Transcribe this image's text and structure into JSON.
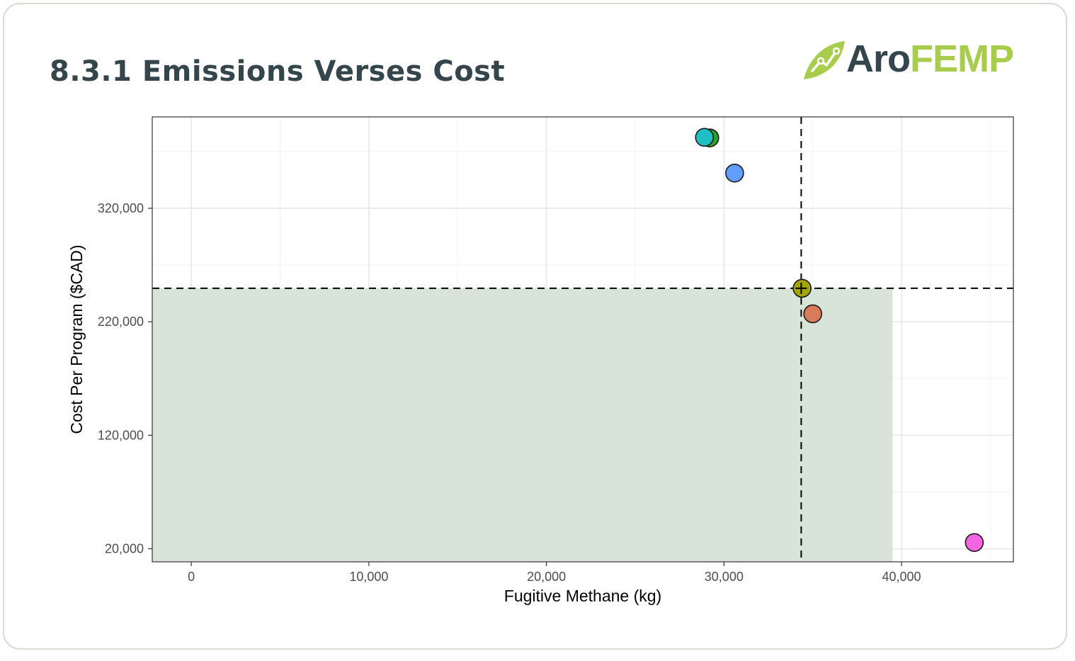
{
  "page": {
    "title": "8.3.1 Emissions Verses Cost"
  },
  "logo": {
    "icon": "leaf-chart-icon",
    "part1": "Aro",
    "part2": "FEMP",
    "colors": {
      "dark": "#34454c",
      "accent": "#a8cc4c"
    }
  },
  "chart_data": {
    "type": "scatter",
    "xlabel": "Fugitive Methane (kg)",
    "ylabel": "Cost Per Program ($CAD)",
    "xlim": [
      -2200,
      46300
    ],
    "ylim": [
      8500,
      400500
    ],
    "x_ticks": [
      0,
      10000,
      20000,
      30000,
      40000
    ],
    "x_tick_labels": [
      "0",
      "10,000",
      "20,000",
      "30,000",
      "40,000"
    ],
    "y_ticks": [
      20000,
      120000,
      220000,
      320000
    ],
    "y_tick_labels": [
      "20,000",
      "120,000",
      "220,000",
      "320,000"
    ],
    "grid": true,
    "points": [
      {
        "x": 29200,
        "y": 382000,
        "color": "#2ca02c"
      },
      {
        "x": 28900,
        "y": 382500,
        "color": "#1fbfc4"
      },
      {
        "x": 30600,
        "y": 351000,
        "color": "#619cff"
      },
      {
        "x": 34400,
        "y": 249500,
        "color": "#a3a500"
      },
      {
        "x": 35000,
        "y": 227000,
        "color": "#d97b5a"
      },
      {
        "x": 44100,
        "y": 25500,
        "color": "#f564e3"
      }
    ],
    "reference": {
      "x": 34350,
      "y": 249500,
      "marker": "+",
      "line_style": "dashed"
    },
    "shaded_region": {
      "x": [
        -2200,
        39500
      ],
      "y": [
        8500,
        249500
      ],
      "color": "#d6e3d6"
    }
  }
}
